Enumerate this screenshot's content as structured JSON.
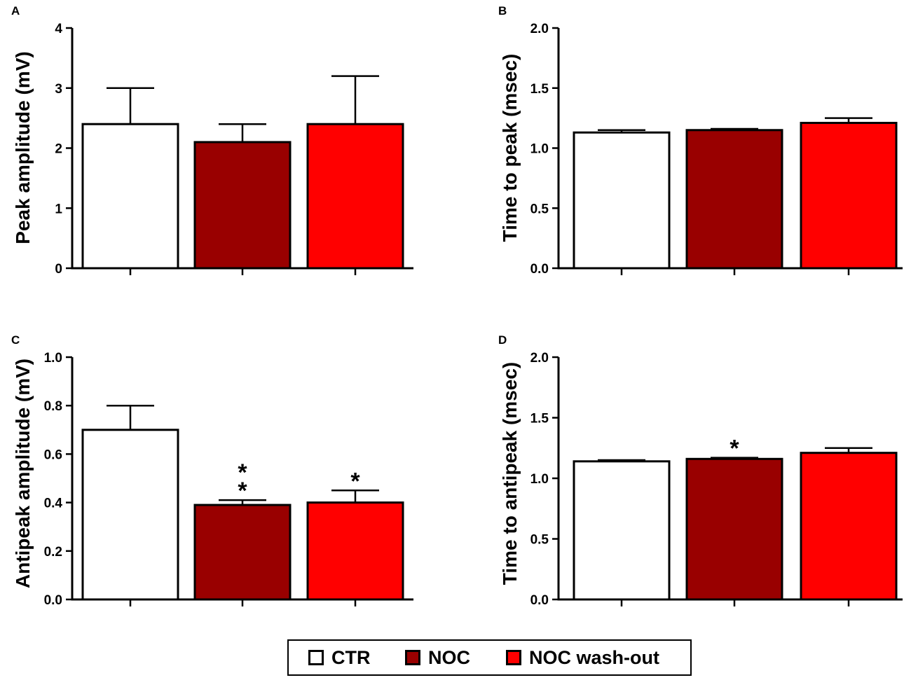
{
  "chart_data": [
    {
      "panel": "A",
      "type": "bar",
      "categories": [
        "CTR",
        "NOC",
        "NOC wash-out"
      ],
      "values": [
        2.4,
        2.1,
        2.4
      ],
      "errors": [
        0.6,
        0.3,
        0.8
      ],
      "ylabel": "Peak amplitude (mV)",
      "ylim": [
        0,
        4
      ],
      "yticks": [
        "0",
        "1",
        "2",
        "3",
        "4"
      ],
      "significance": [
        "",
        "",
        ""
      ]
    },
    {
      "panel": "B",
      "type": "bar",
      "categories": [
        "CTR",
        "NOC",
        "NOC wash-out"
      ],
      "values": [
        1.13,
        1.15,
        1.21
      ],
      "errors": [
        0.02,
        0.01,
        0.04
      ],
      "ylabel": "Time to peak (msec)",
      "ylim": [
        0,
        2
      ],
      "yticks": [
        "0.0",
        "0.5",
        "1.0",
        "1.5",
        "2.0"
      ],
      "significance": [
        "",
        "",
        ""
      ]
    },
    {
      "panel": "C",
      "type": "bar",
      "categories": [
        "CTR",
        "NOC",
        "NOC wash-out"
      ],
      "values": [
        0.7,
        0.39,
        0.4
      ],
      "errors": [
        0.1,
        0.02,
        0.05
      ],
      "ylabel": "Antipeak amplitude (mV)",
      "ylim": [
        0,
        1
      ],
      "yticks": [
        "0.0",
        "0.2",
        "0.4",
        "0.6",
        "0.8",
        "1.0"
      ],
      "significance": [
        "",
        "**",
        "*"
      ]
    },
    {
      "panel": "D",
      "type": "bar",
      "categories": [
        "CTR",
        "NOC",
        "NOC wash-out"
      ],
      "values": [
        1.14,
        1.16,
        1.21
      ],
      "errors": [
        0.01,
        0.01,
        0.04
      ],
      "ylabel": "Time to antipeak (msec)",
      "ylim": [
        0,
        2
      ],
      "yticks": [
        "0.0",
        "0.5",
        "1.0",
        "1.5",
        "2.0"
      ],
      "significance": [
        "",
        "*",
        ""
      ]
    }
  ],
  "legend": [
    {
      "label": "CTR",
      "color": "#ffffff"
    },
    {
      "label": "NOC",
      "color": "#990000"
    },
    {
      "label": "NOC wash-out",
      "color": "#ff0000"
    }
  ],
  "colors": [
    "#ffffff",
    "#990000",
    "#ff0000"
  ]
}
